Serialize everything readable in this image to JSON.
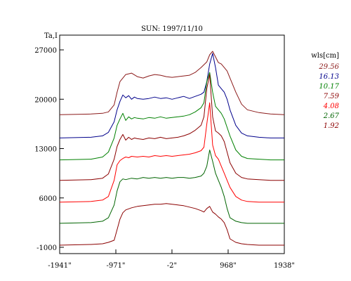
{
  "chart_data": {
    "type": "line",
    "title": "SUN: 1997/11/10",
    "ylabel": "Ta,I",
    "xlim": [
      -1941,
      1938
    ],
    "ylim": [
      -1000,
      27000
    ],
    "x_ticks": [
      -1941,
      -971,
      -2,
      968,
      1938
    ],
    "x_tick_labels": [
      "-1941\"",
      "-971\"",
      "-2\"",
      "968\"",
      "1938\""
    ],
    "y_ticks": [
      -1000,
      6000,
      13000,
      20000,
      27000
    ],
    "y_tick_labels": [
      "-1000",
      "6000",
      "13000",
      "20000",
      "27000"
    ],
    "legend": {
      "title": "wls[cm]",
      "placement": "right"
    },
    "series": [
      {
        "name": "29.56",
        "color": "#8b1a1a",
        "x": [
          -1941,
          -1400,
          -1200,
          -1100,
          -1000,
          -950,
          -900,
          -800,
          -700,
          -600,
          -500,
          -400,
          -300,
          -200,
          -100,
          0,
          100,
          200,
          300,
          400,
          500,
          600,
          650,
          700,
          750,
          800,
          850,
          900,
          950,
          1000,
          1100,
          1200,
          1300,
          1500,
          1700,
          1938
        ],
        "y": [
          17800,
          17900,
          18000,
          18200,
          19200,
          21000,
          22500,
          23500,
          23700,
          23200,
          23000,
          23300,
          23500,
          23400,
          23200,
          23100,
          23200,
          23300,
          23400,
          23800,
          24500,
          25300,
          26300,
          26800,
          26000,
          25200,
          25000,
          24500,
          24000,
          23000,
          21000,
          19300,
          18500,
          18100,
          17900,
          17800
        ]
      },
      {
        "name": "16.13",
        "color": "#00008b",
        "x": [
          -1941,
          -1400,
          -1200,
          -1100,
          -1000,
          -950,
          -900,
          -850,
          -800,
          -750,
          -700,
          -650,
          -600,
          -500,
          -400,
          -300,
          -200,
          -100,
          0,
          100,
          200,
          300,
          400,
          500,
          550,
          600,
          650,
          700,
          750,
          800,
          850,
          900,
          950,
          1000,
          1100,
          1200,
          1300,
          1500,
          1700,
          1938
        ],
        "y": [
          14500,
          14600,
          14800,
          15300,
          16800,
          18500,
          19700,
          20600,
          20200,
          20500,
          20000,
          20300,
          20100,
          20000,
          20100,
          20300,
          20100,
          20200,
          20000,
          20200,
          20400,
          20100,
          20400,
          20700,
          21000,
          22500,
          25000,
          26500,
          24500,
          22000,
          21500,
          21000,
          20000,
          18500,
          16300,
          15200,
          14800,
          14600,
          14500,
          14500
        ]
      },
      {
        "name": "10.17",
        "color": "#008000",
        "x": [
          -1941,
          -1400,
          -1200,
          -1100,
          -1000,
          -950,
          -900,
          -850,
          -800,
          -750,
          -700,
          -650,
          -600,
          -500,
          -400,
          -300,
          -200,
          -100,
          0,
          100,
          200,
          300,
          400,
          500,
          550,
          600,
          650,
          700,
          750,
          800,
          850,
          900,
          950,
          1000,
          1100,
          1200,
          1300,
          1500,
          1700,
          1938
        ],
        "y": [
          11400,
          11500,
          11800,
          12500,
          14500,
          16300,
          17200,
          18000,
          17000,
          17500,
          17200,
          17400,
          17300,
          17200,
          17400,
          17300,
          17500,
          17300,
          17400,
          17500,
          17600,
          17800,
          18200,
          18800,
          19500,
          22500,
          23800,
          21000,
          19000,
          18500,
          18000,
          17200,
          16000,
          14800,
          12800,
          11900,
          11600,
          11500,
          11400,
          11400
        ]
      },
      {
        "name": "7.59",
        "color": "#8b0000",
        "x": [
          -1941,
          -1400,
          -1200,
          -1100,
          -1000,
          -950,
          -900,
          -850,
          -800,
          -750,
          -700,
          -650,
          -600,
          -500,
          -400,
          -300,
          -200,
          -100,
          0,
          100,
          200,
          300,
          400,
          500,
          550,
          600,
          650,
          700,
          750,
          800,
          850,
          900,
          950,
          1000,
          1100,
          1200,
          1300,
          1500,
          1700,
          1938
        ],
        "y": [
          8500,
          8600,
          8800,
          9400,
          11500,
          13300,
          14300,
          15000,
          14200,
          14600,
          14300,
          14500,
          14400,
          14300,
          14500,
          14400,
          14600,
          14400,
          14500,
          14600,
          14800,
          15100,
          15600,
          16300,
          17500,
          21500,
          23500,
          17500,
          15500,
          15200,
          14800,
          14000,
          12500,
          11000,
          9500,
          8900,
          8700,
          8600,
          8500,
          8500
        ]
      },
      {
        "name": "4.08",
        "color": "#ff0000",
        "x": [
          -1941,
          -1400,
          -1200,
          -1100,
          -1000,
          -950,
          -900,
          -850,
          -800,
          -750,
          -700,
          -600,
          -500,
          -400,
          -300,
          -200,
          -100,
          0,
          100,
          200,
          300,
          400,
          500,
          550,
          600,
          650,
          700,
          750,
          800,
          850,
          900,
          950,
          1000,
          1100,
          1200,
          1300,
          1500,
          1700,
          1938
        ],
        "y": [
          5400,
          5500,
          5700,
          6200,
          8500,
          10700,
          11300,
          11600,
          11800,
          11700,
          11900,
          11800,
          11900,
          11800,
          12000,
          11900,
          12000,
          11900,
          12000,
          12100,
          12200,
          12400,
          12700,
          13200,
          16500,
          19500,
          13500,
          12000,
          11500,
          10500,
          9500,
          8500,
          7500,
          6200,
          5700,
          5500,
          5400,
          5400,
          5400
        ]
      },
      {
        "name": "2.67",
        "color": "#006400",
        "x": [
          -1941,
          -1400,
          -1200,
          -1100,
          -1000,
          -950,
          -900,
          -850,
          -800,
          -700,
          -600,
          -500,
          -400,
          -300,
          -200,
          -100,
          0,
          100,
          200,
          300,
          400,
          500,
          550,
          600,
          650,
          700,
          750,
          800,
          850,
          900,
          950,
          1000,
          1100,
          1200,
          1300,
          1500,
          1700,
          1938
        ],
        "y": [
          2400,
          2500,
          2700,
          3200,
          5000,
          7000,
          8300,
          8700,
          8600,
          8800,
          8700,
          8900,
          8800,
          8900,
          8800,
          8900,
          8800,
          8900,
          8900,
          8800,
          8900,
          9100,
          9500,
          10500,
          12800,
          11200,
          9500,
          8500,
          7500,
          6200,
          4500,
          3200,
          2700,
          2500,
          2400,
          2400,
          2400,
          2400
        ]
      },
      {
        "name": "1.92",
        "color": "#8b0000",
        "x": [
          -1941,
          -1400,
          -1200,
          -1100,
          -1000,
          -950,
          -900,
          -850,
          -800,
          -700,
          -600,
          -500,
          -400,
          -300,
          -200,
          -100,
          0,
          100,
          200,
          300,
          400,
          500,
          550,
          600,
          650,
          700,
          750,
          800,
          850,
          900,
          950,
          1000,
          1100,
          1200,
          1300,
          1500,
          1700,
          1938
        ],
        "y": [
          -700,
          -600,
          -500,
          -300,
          0,
          1500,
          3000,
          3900,
          4300,
          4600,
          4800,
          4900,
          5000,
          5100,
          5100,
          5200,
          5100,
          5000,
          4900,
          4700,
          4500,
          4200,
          4000,
          4500,
          4800,
          4000,
          3700,
          3300,
          3000,
          2500,
          1500,
          200,
          -300,
          -500,
          -600,
          -700,
          -700,
          -700
        ]
      }
    ]
  }
}
